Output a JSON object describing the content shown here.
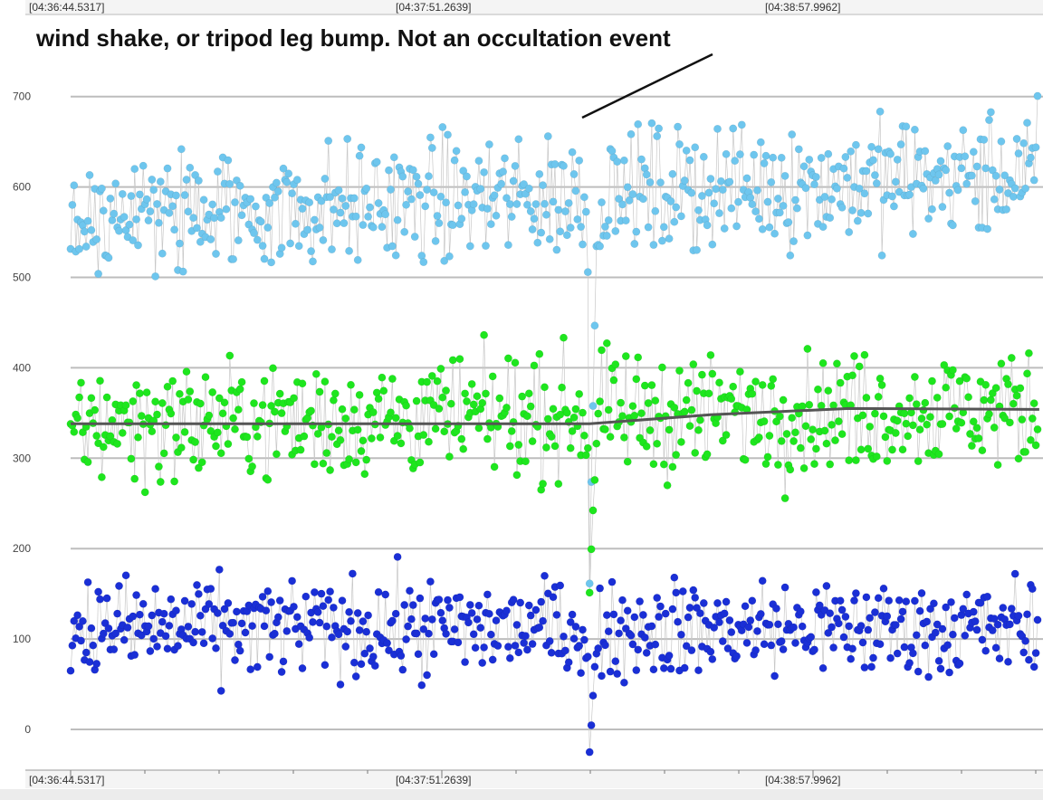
{
  "chart_data": {
    "type": "scatter",
    "x_tick_labels": [
      "[04:36:44.5317]",
      "[04:37:51.2639]",
      "[04:38:57.9962]"
    ],
    "y_ticks": [
      0,
      100,
      200,
      300,
      400,
      500,
      600,
      700
    ],
    "ylim": [
      -50,
      780
    ],
    "grid": true,
    "annotation": "wind shake, or tripod leg bump. Not an occultation event",
    "frames": 560,
    "event_frame": 300,
    "series": [
      {
        "color": "#6ec6ee",
        "mean_start": 565,
        "mean_end": 615,
        "spread": 48,
        "dip_to": 170
      },
      {
        "color": "#1ee61e",
        "mean_start": 338,
        "mean_end": 355,
        "spread": 45,
        "dip_to": 150
      },
      {
        "color": "#1a2fd6",
        "mean_start": 112,
        "mean_end": 112,
        "spread": 38,
        "dip_to": -20
      }
    ],
    "trend_line": {
      "color": "#555555",
      "points": [
        [
          0,
          338
        ],
        [
          300,
          338
        ],
        [
          370,
          348
        ],
        [
          450,
          355
        ],
        [
          560,
          354
        ]
      ]
    },
    "link_color": "#c8c8c8"
  }
}
